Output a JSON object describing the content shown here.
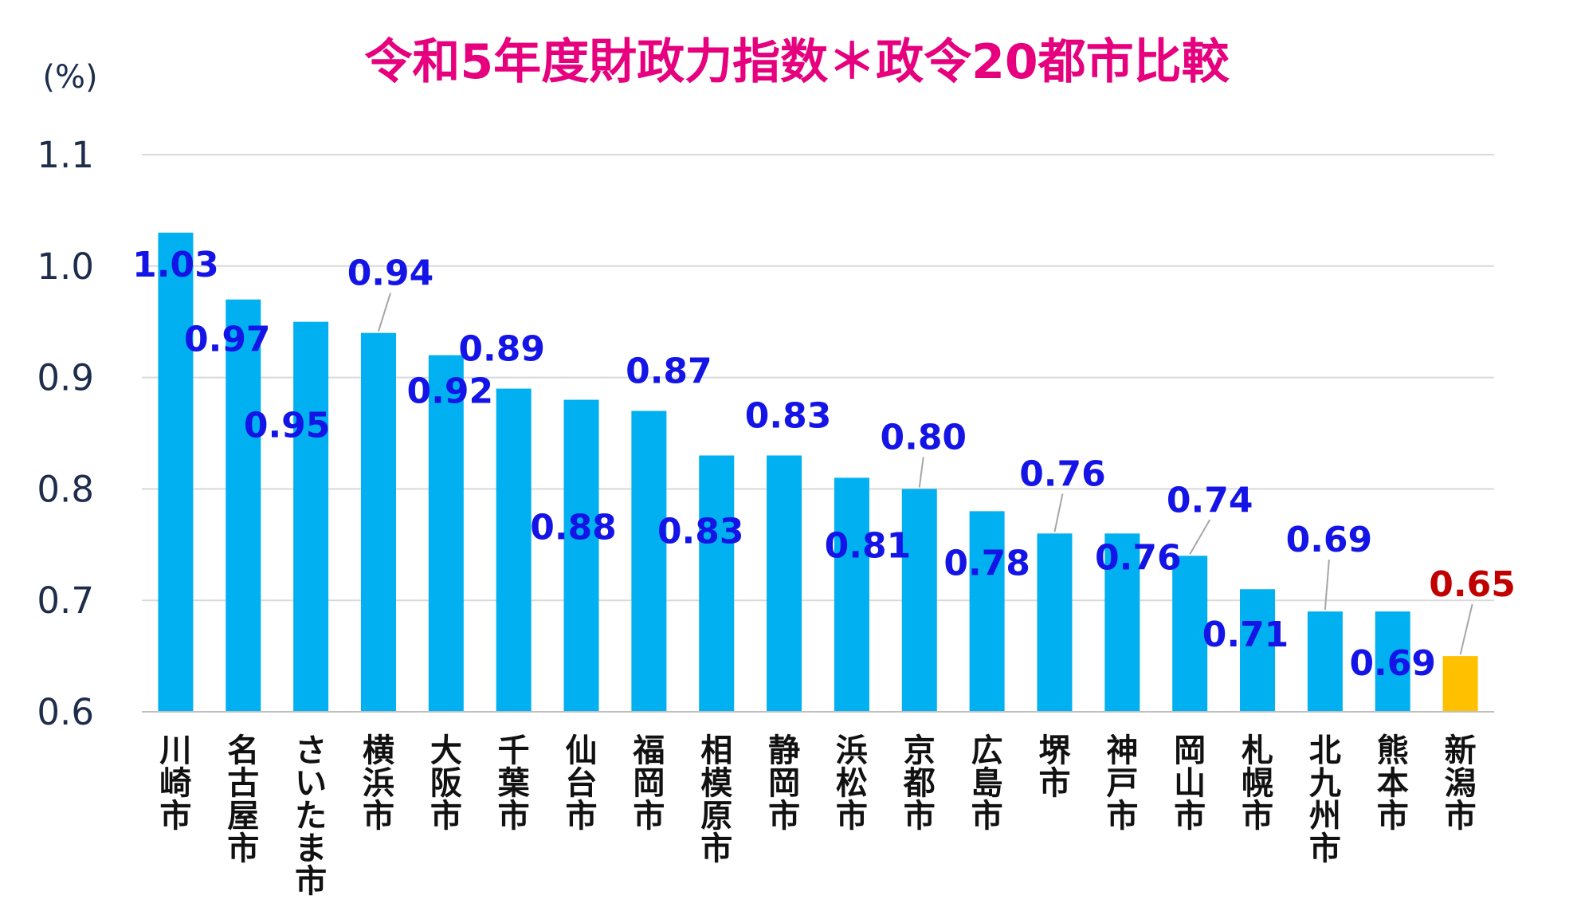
{
  "chart_data": {
    "type": "bar",
    "title": "令和5年度財政力指数＊政令20都市比較",
    "unit": "(%)",
    "ylim": [
      0.6,
      1.1
    ],
    "yticks": [
      "0.6",
      "0.7",
      "0.8",
      "0.9",
      "1.0",
      "1.1"
    ],
    "grid": true,
    "categories": [
      "川崎市",
      "名古屋市",
      "さいたま市",
      "横浜市",
      "大阪市",
      "千葉市",
      "仙台市",
      "福岡市",
      "相模原市",
      "静岡市",
      "浜松市",
      "京都市",
      "広島市",
      "堺市",
      "神戸市",
      "岡山市",
      "札幌市",
      "北九州市",
      "熊本市",
      "新潟市"
    ],
    "values": [
      1.03,
      0.97,
      0.95,
      0.94,
      0.92,
      0.89,
      0.88,
      0.87,
      0.83,
      0.83,
      0.81,
      0.8,
      0.78,
      0.76,
      0.76,
      0.74,
      0.71,
      0.69,
      0.69,
      0.65
    ],
    "labels": [
      "1.03",
      "0.97",
      "0.95",
      "0.94",
      "0.92",
      "0.89",
      "0.88",
      "0.87",
      "0.83",
      "0.83",
      "0.81",
      "0.80",
      "0.78",
      "0.76",
      "0.76",
      "0.74",
      "0.71",
      "0.69",
      "0.69",
      "0.65"
    ],
    "colors": {
      "bar": "#00b0f0",
      "highlight_bar": "#ffc000",
      "label": "#1414e6",
      "highlight_label": "#c00000",
      "title": "#e6007e"
    },
    "highlight_index": 19
  }
}
